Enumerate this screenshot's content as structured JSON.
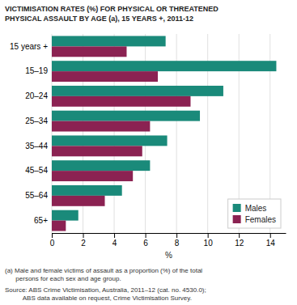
{
  "chart_data": {
    "type": "bar",
    "orientation": "horizontal",
    "title": "VICTIMISATION RATES (%) FOR PHYSICAL OR THREATENED\nPHYSICAL ASSAULT BY AGE (a), 15 YEARS +, 2011-12",
    "categories": [
      "15 years +",
      "15–19",
      "20–24",
      "25–34",
      "35–44",
      "45–54",
      "55–64",
      "65+"
    ],
    "series": [
      {
        "name": "Males",
        "color": "#1a8a7a",
        "values": [
          7.3,
          14.4,
          11.0,
          9.5,
          7.4,
          6.3,
          4.5,
          1.7
        ]
      },
      {
        "name": "Females",
        "color": "#8b2252",
        "values": [
          4.8,
          6.8,
          8.9,
          6.3,
          5.8,
          5.2,
          3.4,
          0.9
        ]
      }
    ],
    "xlabel": "%",
    "xlim": [
      0,
      15
    ],
    "xticks": [
      0,
      2,
      4,
      6,
      8,
      10,
      12,
      14
    ],
    "grid": true,
    "legend": "lower right",
    "annotations": [
      "(a) Male and female victims of assault as a proportion (%) of the total\n      persons for each sex and age group.",
      "Source: ABS Crime Victimisation, Australia, 2011–12 (cat. no. 4530.0);\n          ABS data available on request, Crime Victimisation Survey."
    ]
  }
}
